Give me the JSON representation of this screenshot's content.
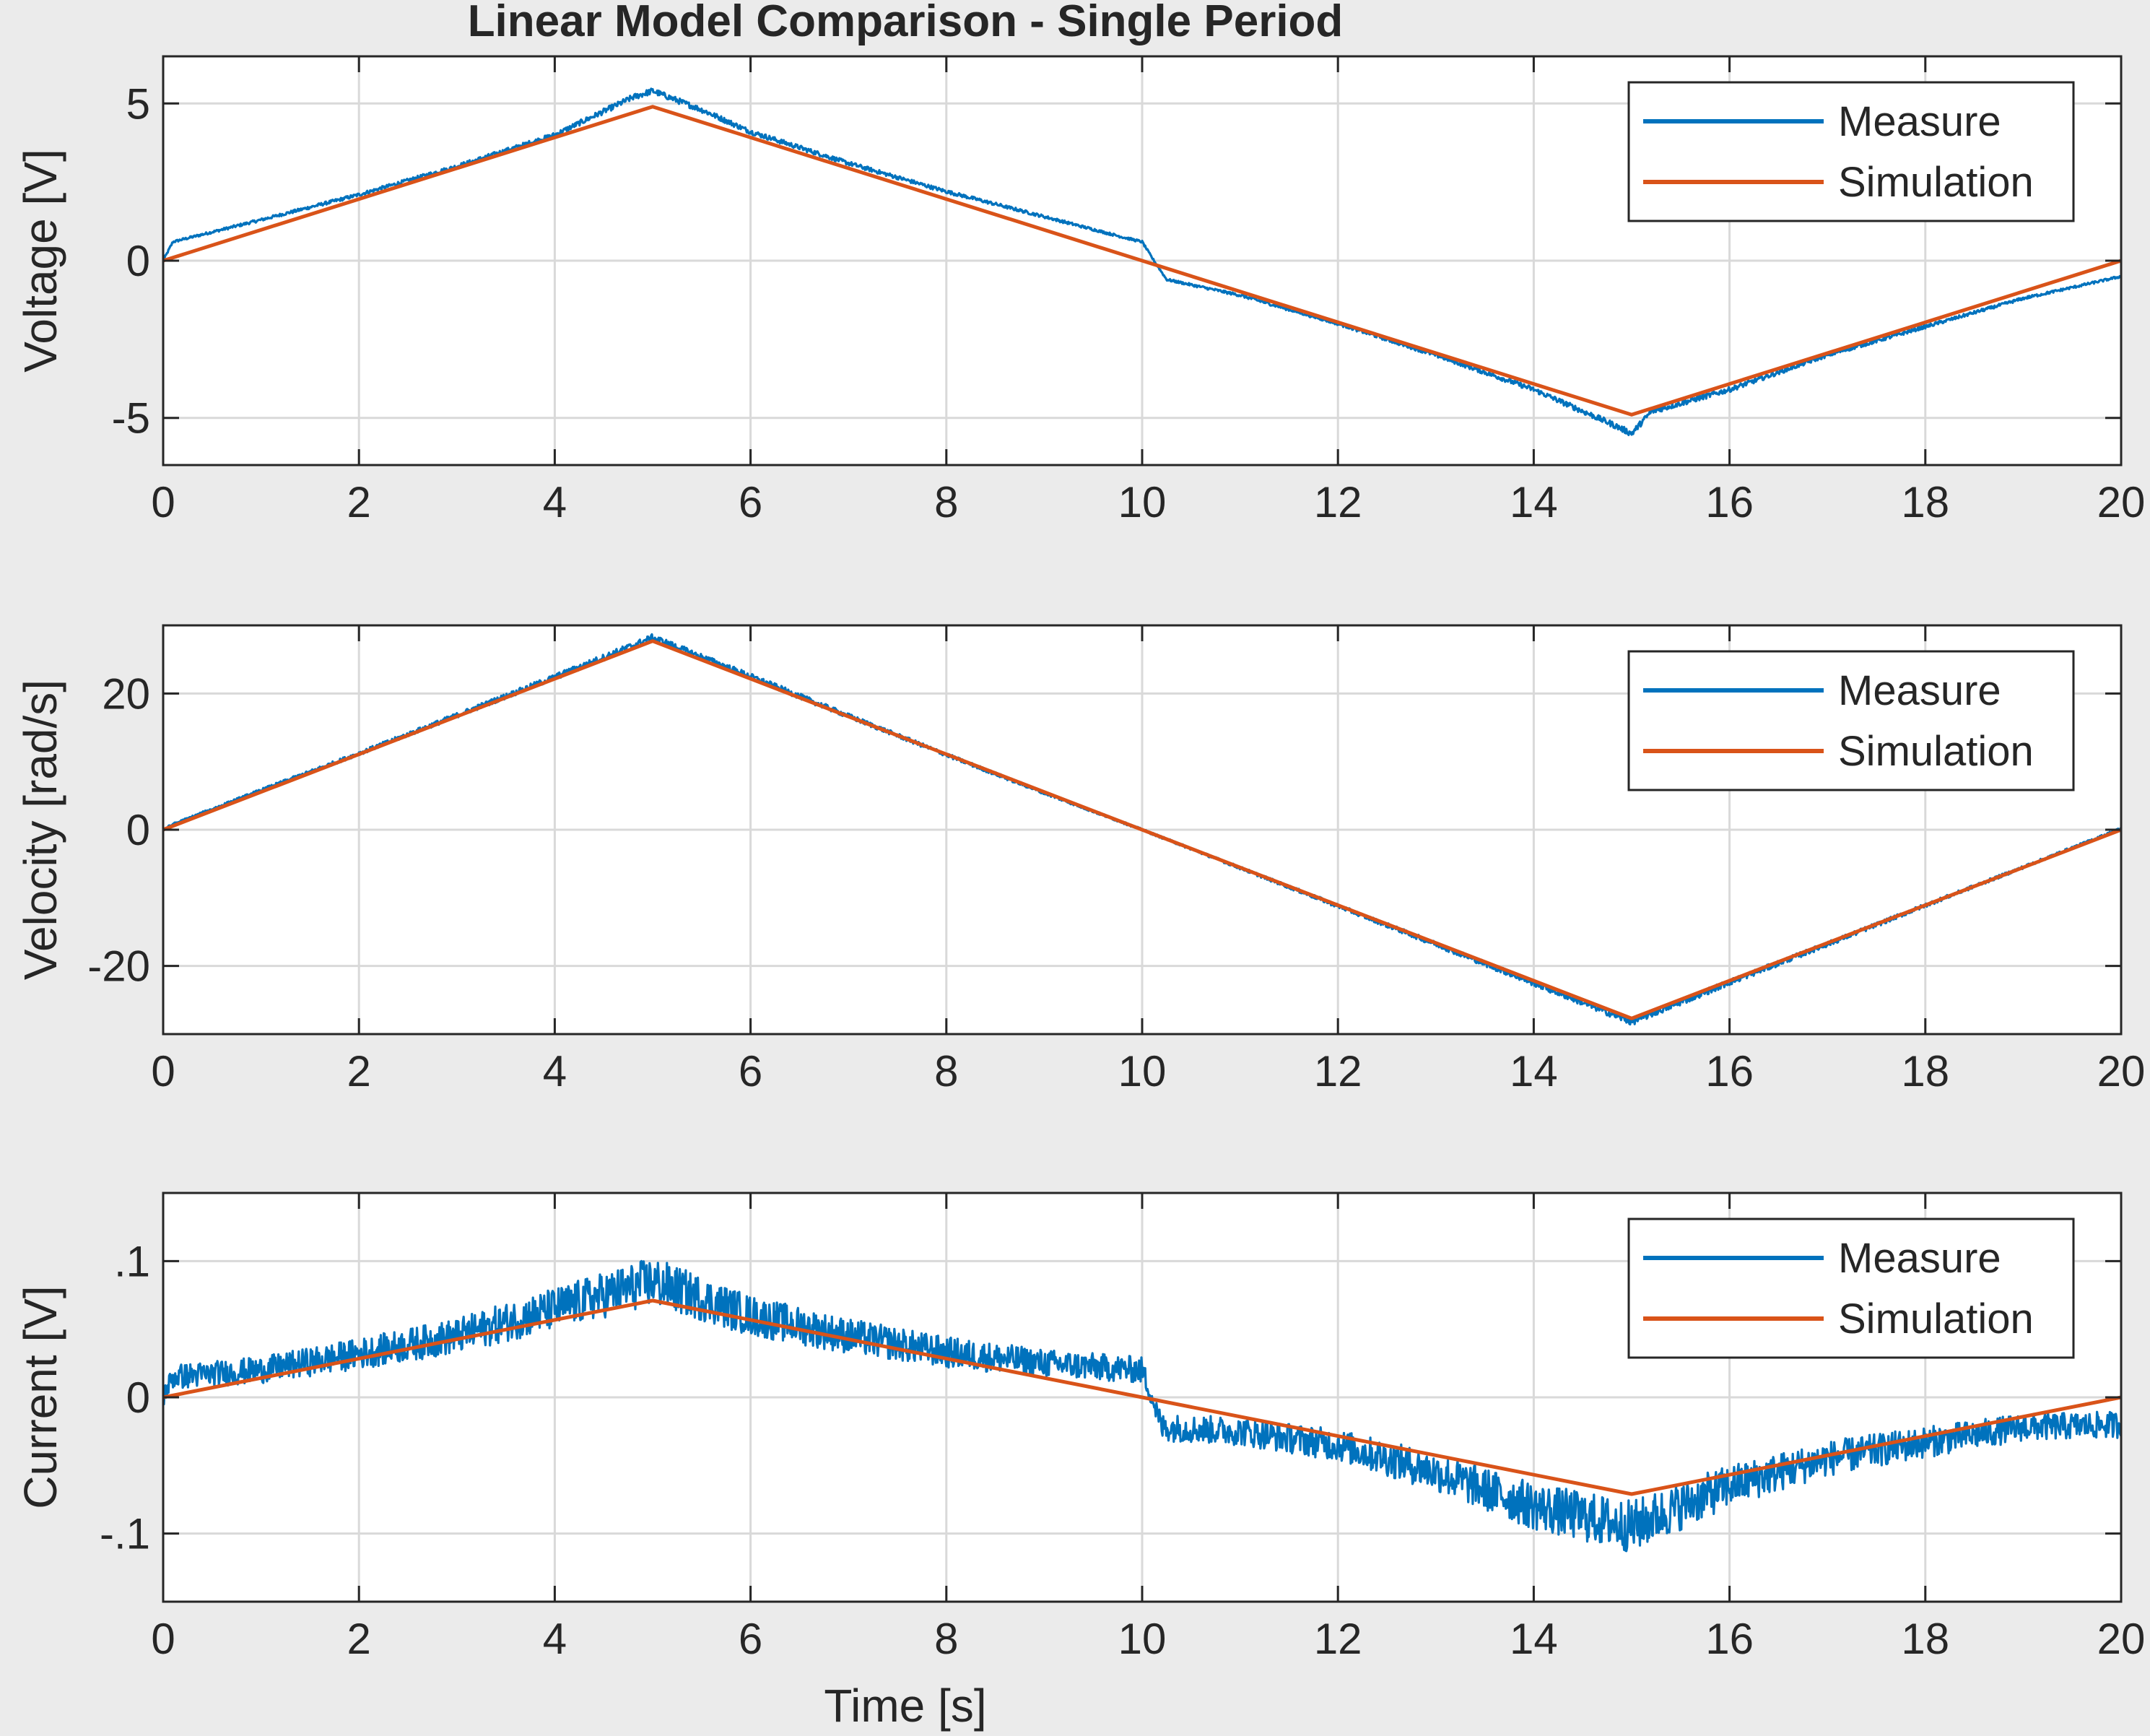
{
  "figure": {
    "title": "Linear Model Comparison - Single Period",
    "xlabel": "Time [s]",
    "colors": {
      "background": "#ebebeb",
      "axes": "#ffffff",
      "measure": "#0072BD",
      "simulation": "#D95319",
      "grid": "#d9d9d9",
      "text": "#262626"
    }
  },
  "chart_data": [
    {
      "type": "line",
      "title": "Linear Model Comparison - Single Period",
      "xlabel": "",
      "ylabel": "Voltage [V]",
      "xlim": [
        0,
        20
      ],
      "ylim": [
        -6.5,
        6.5
      ],
      "xticks": [
        0,
        2,
        4,
        6,
        8,
        10,
        12,
        14,
        16,
        18,
        20
      ],
      "yticks": [
        -5,
        0,
        5
      ],
      "grid": true,
      "legend": "top-right",
      "series": [
        {
          "name": "Measure",
          "color": "#0072BD",
          "x": [
            0,
            0.1,
            1,
            2,
            3,
            4,
            4.8,
            5,
            5.5,
            6,
            7,
            8,
            9,
            9.8,
            10.0,
            10.1,
            10.25,
            11,
            12,
            13,
            14,
            14.8,
            15.0,
            15.2,
            16,
            17,
            18,
            19,
            20
          ],
          "y": [
            0,
            0.6,
            1.3,
            2.1,
            3.0,
            4.0,
            5.2,
            5.4,
            4.8,
            4.1,
            3.1,
            2.2,
            1.4,
            0.75,
            0.6,
            0.1,
            -0.6,
            -1.1,
            -2.0,
            -3.0,
            -4.1,
            -5.2,
            -5.5,
            -4.8,
            -4.1,
            -3.0,
            -2.1,
            -1.2,
            -0.5
          ],
          "noise": 0.05
        },
        {
          "name": "Simulation",
          "color": "#D95319",
          "x": [
            0,
            5,
            10,
            15,
            20
          ],
          "y": [
            0,
            4.9,
            0,
            -4.9,
            0
          ]
        }
      ]
    },
    {
      "type": "line",
      "ylabel": "Velocity [rad/s]",
      "xlim": [
        0,
        20
      ],
      "ylim": [
        -30,
        30
      ],
      "xticks": [
        0,
        2,
        4,
        6,
        8,
        10,
        12,
        14,
        16,
        18,
        20
      ],
      "yticks": [
        -20,
        0,
        20
      ],
      "grid": true,
      "legend": "top-right",
      "series": [
        {
          "name": "Measure",
          "color": "#0072BD",
          "x": [
            0,
            0.1,
            1,
            2,
            3,
            4,
            5,
            6,
            7,
            8,
            9,
            10,
            11,
            12,
            13,
            14,
            15,
            16,
            17,
            18,
            19,
            20
          ],
          "y": [
            0,
            0.8,
            5.8,
            11.2,
            16.8,
            22.4,
            28.2,
            22.5,
            16.7,
            11.0,
            5.4,
            0,
            -5.6,
            -11.2,
            -16.8,
            -22.5,
            -28.2,
            -22.4,
            -16.8,
            -11.1,
            -5.5,
            0.2
          ],
          "noise": 0.25
        },
        {
          "name": "Simulation",
          "color": "#D95319",
          "x": [
            0,
            5,
            10,
            15,
            20
          ],
          "y": [
            0,
            27.7,
            0,
            -27.7,
            0
          ]
        }
      ]
    },
    {
      "type": "line",
      "ylabel": "Current [V]",
      "xlim": [
        0,
        20
      ],
      "ylim": [
        -0.15,
        0.15
      ],
      "xticks": [
        0,
        2,
        4,
        6,
        8,
        10,
        12,
        14,
        16,
        18,
        20
      ],
      "yticks": [
        -0.1,
        0,
        0.1
      ],
      "grid": true,
      "legend": "top-right",
      "series": [
        {
          "name": "Measure",
          "color": "#0072BD",
          "x": [
            0,
            0.1,
            1,
            2,
            3,
            4,
            5,
            6,
            7,
            8,
            9,
            10.0,
            10.1,
            10.2,
            11,
            12,
            13,
            14,
            15,
            16,
            17,
            18,
            19,
            20
          ],
          "y": [
            0,
            0.015,
            0.02,
            0.032,
            0.045,
            0.065,
            0.085,
            0.06,
            0.045,
            0.033,
            0.025,
            0.02,
            0.0,
            -0.022,
            -0.025,
            -0.035,
            -0.055,
            -0.08,
            -0.095,
            -0.065,
            -0.045,
            -0.033,
            -0.022,
            -0.02
          ],
          "noise": 0.012
        },
        {
          "name": "Simulation",
          "color": "#D95319",
          "x": [
            0,
            5,
            10,
            15,
            20
          ],
          "y": [
            0,
            0.071,
            0,
            -0.071,
            0
          ]
        }
      ]
    }
  ]
}
